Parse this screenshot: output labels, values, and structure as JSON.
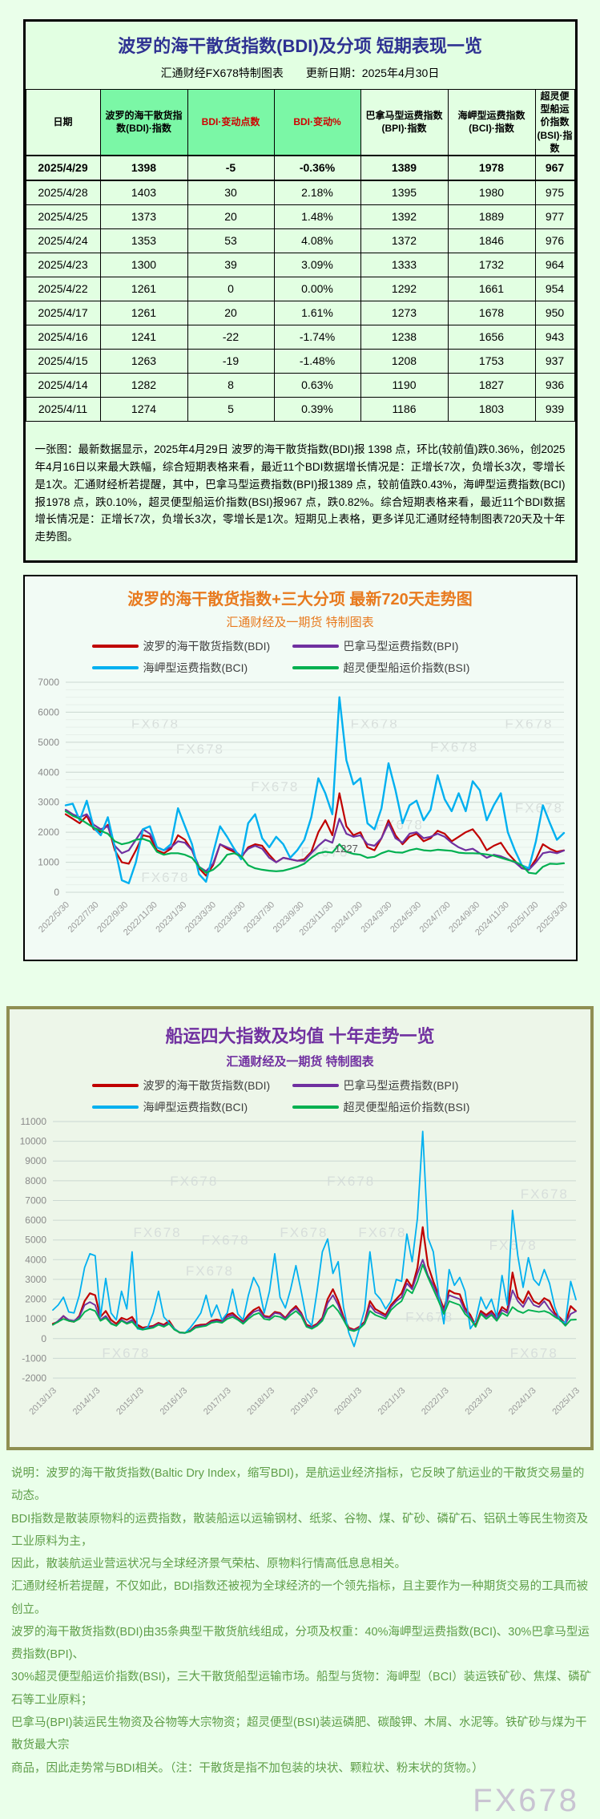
{
  "page": {
    "watermark": "FX678"
  },
  "summary_table": {
    "title": "波罗的海干散货指数(BDI)及分项 短期表现一览",
    "subtitle_left": "汇通财经FX678特制图表",
    "subtitle_right": "更新日期：2025年4月30日",
    "columns": [
      "日期",
      "波罗的海干散货指数(BDI)·指数",
      "BDI·变动点数",
      "BDI·变动%",
      "巴拿马型运费指数(BPI)·指数",
      "海岬型运费指数(BCI)·指数",
      "超灵便型船运价指数(BSI)·指数"
    ],
    "rows": [
      [
        "2025/4/29",
        "1398",
        "-5",
        "-0.36%",
        "1389",
        "1978",
        "967"
      ],
      [
        "2025/4/28",
        "1403",
        "30",
        "2.18%",
        "1395",
        "1980",
        "975"
      ],
      [
        "2025/4/25",
        "1373",
        "20",
        "1.48%",
        "1392",
        "1889",
        "977"
      ],
      [
        "2025/4/24",
        "1353",
        "53",
        "4.08%",
        "1372",
        "1846",
        "976"
      ],
      [
        "2025/4/23",
        "1300",
        "39",
        "3.09%",
        "1333",
        "1732",
        "964"
      ],
      [
        "2025/4/22",
        "1261",
        "0",
        "0.00%",
        "1292",
        "1661",
        "954"
      ],
      [
        "2025/4/17",
        "1261",
        "20",
        "1.61%",
        "1273",
        "1678",
        "950"
      ],
      [
        "2025/4/16",
        "1241",
        "-22",
        "-1.74%",
        "1238",
        "1656",
        "943"
      ],
      [
        "2025/4/15",
        "1263",
        "-19",
        "-1.48%",
        "1208",
        "1753",
        "937"
      ],
      [
        "2025/4/14",
        "1282",
        "8",
        "0.63%",
        "1190",
        "1827",
        "936"
      ],
      [
        "2025/4/11",
        "1274",
        "5",
        "0.39%",
        "1186",
        "1803",
        "939"
      ]
    ],
    "note": "一张图：最新数据显示，2025年4月29日 波罗的海干散货指数(BDI)报 1398 点，环比(较前值)跌0.36%，创2025年4月16日以来最大跌幅，综合短期表格来看，最近11个BDI数据增长情况是：正增长7次，负增长3次，零增长是1次。汇通财经析若提醒，其中，巴拿马型运费指数(BPI)报1389 点，较前值跌0.43%，海岬型运费指数(BCI)报1978 点，跌0.10%，超灵便型船运价指数(BSI)报967 点，跌0.82%。综合短期表格来看，最近11个BDI数据增长情况是：正增长7次，负增长3次，零增长是1次。短期见上表格，更多详见汇通财经特制图表720天及十年走势图。"
  },
  "chart_data": [
    {
      "type": "line",
      "title": "波罗的海干散货指数+三大分项  最新720天走势图",
      "subtitle": "汇通财经及一期货 特制图表",
      "legend_position": "top",
      "grid": true,
      "watermark": "FX678",
      "watermarks": [
        [
          0.18,
          0.22
        ],
        [
          0.62,
          0.22
        ],
        [
          0.93,
          0.22
        ],
        [
          0.27,
          0.34
        ],
        [
          0.78,
          0.33
        ],
        [
          0.42,
          0.52
        ],
        [
          0.67,
          0.7
        ],
        [
          0.95,
          0.62
        ],
        [
          0.52,
          0.83
        ],
        [
          0.2,
          0.95
        ]
      ],
      "ylim": [
        0,
        7000
      ],
      "ytick_step": 1000,
      "minor_step": 250,
      "x_labels": [
        "2022/5/30",
        "2022/7/30",
        "2022/9/30",
        "2022/11/30",
        "2023/1/30",
        "2023/3/30",
        "2023/5/30",
        "2023/7/30",
        "2023/9/30",
        "2023/11/30",
        "2024/1/30",
        "2024/3/30",
        "2024/5/30",
        "2024/7/30",
        "2024/9/30",
        "2024/11/30",
        "2025/1/30",
        "2025/3/30"
      ],
      "annotations": [
        {
          "text": "1227",
          "x_frac": 0.54,
          "value": 1330
        }
      ],
      "series": [
        {
          "name": "波罗的海干散货指数(BDI)",
          "color": "#c00000",
          "width": 2.2,
          "values": [
            2600,
            2450,
            2300,
            2550,
            2100,
            2000,
            2250,
            1400,
            1000,
            950,
            1400,
            1900,
            1850,
            1400,
            1300,
            1450,
            1900,
            1750,
            1400,
            800,
            550,
            900,
            1600,
            1450,
            1350,
            1150,
            1500,
            1600,
            1550,
            1250,
            1000,
            1150,
            1100,
            1050,
            1100,
            1350,
            2000,
            2400,
            1900,
            3300,
            2200,
            1900,
            2000,
            1500,
            1400,
            1800,
            2400,
            1900,
            1600,
            1850,
            1950,
            1700,
            1800,
            2050,
            1950,
            1700,
            1850,
            2000,
            2100,
            1800,
            1400,
            1550,
            1650,
            1300,
            1050,
            800,
            750,
            1100,
            1600,
            1450,
            1350,
            1398
          ]
        },
        {
          "name": "巴拿马型运费指数(BPI)",
          "color": "#7030a0",
          "width": 2.2,
          "values": [
            2750,
            2600,
            2500,
            2600,
            2250,
            2100,
            2200,
            1550,
            1300,
            1400,
            1750,
            2100,
            1950,
            1500,
            1400,
            1500,
            1700,
            1650,
            1400,
            850,
            700,
            950,
            1600,
            1500,
            1400,
            1200,
            1450,
            1550,
            1450,
            1150,
            1000,
            1150,
            1100,
            1050,
            1050,
            1300,
            1550,
            1750,
            1650,
            2450,
            1950,
            1850,
            1900,
            1600,
            1550,
            1800,
            2300,
            1800,
            1650,
            1950,
            2000,
            1800,
            1850,
            1950,
            1850,
            1650,
            1500,
            1400,
            1450,
            1300,
            1150,
            1250,
            1200,
            1100,
            1000,
            800,
            750,
            1000,
            1300,
            1350,
            1300,
            1389
          ]
        },
        {
          "name": "海岬型运费指数(BCI)",
          "color": "#00b0f0",
          "width": 2.4,
          "values": [
            2900,
            2950,
            2400,
            3050,
            2150,
            1900,
            2500,
            1500,
            400,
            300,
            1000,
            2100,
            2200,
            1500,
            1400,
            1600,
            2800,
            2200,
            1600,
            600,
            350,
            1300,
            2200,
            1850,
            1450,
            1100,
            2300,
            2600,
            1800,
            1500,
            1850,
            1600,
            1150,
            1400,
            1750,
            2500,
            3800,
            3300,
            2600,
            6500,
            4400,
            3600,
            3800,
            2300,
            2100,
            2800,
            4300,
            3400,
            2300,
            2900,
            3050,
            2400,
            2750,
            3900,
            3100,
            2700,
            3300,
            2700,
            3700,
            3400,
            2400,
            2900,
            3300,
            2000,
            1400,
            900,
            800,
            1700,
            2900,
            2300,
            1750,
            1978
          ]
        },
        {
          "name": "超灵便型船运价指数(BSI)",
          "color": "#00b050",
          "width": 2.2,
          "values": [
            2700,
            2550,
            2450,
            2300,
            2150,
            2050,
            1950,
            1700,
            1600,
            1650,
            1750,
            1780,
            1700,
            1350,
            1250,
            1300,
            1300,
            1250,
            1150,
            850,
            650,
            750,
            950,
            1250,
            1300,
            1200,
            900,
            800,
            750,
            720,
            700,
            720,
            780,
            850,
            950,
            1150,
            1300,
            1350,
            1320,
            1600,
            1350,
            1280,
            1250,
            1150,
            1180,
            1300,
            1380,
            1330,
            1320,
            1400,
            1450,
            1400,
            1380,
            1420,
            1400,
            1380,
            1320,
            1300,
            1300,
            1290,
            1260,
            1220,
            1150,
            1080,
            1020,
            900,
            650,
            620,
            850,
            950,
            940,
            967
          ]
        }
      ]
    },
    {
      "type": "line",
      "title": "船运四大指数及均值 十年走势一览",
      "subtitle": "汇通财经及一期货 特制图表",
      "legend_position": "top",
      "grid": true,
      "watermark": "FX678",
      "watermarks": [
        [
          0.27,
          0.25
        ],
        [
          0.57,
          0.25
        ],
        [
          0.94,
          0.3
        ],
        [
          0.2,
          0.45
        ],
        [
          0.33,
          0.48
        ],
        [
          0.48,
          0.45
        ],
        [
          0.63,
          0.45
        ],
        [
          0.88,
          0.5
        ],
        [
          0.3,
          0.6
        ],
        [
          0.72,
          0.78
        ],
        [
          0.14,
          0.92
        ],
        [
          0.92,
          0.92
        ]
      ],
      "ylim": [
        -2000,
        11000
      ],
      "ytick_step": 1000,
      "minor_step": null,
      "x_labels": [
        "2013/1/3",
        "2014/1/3",
        "2015/1/3",
        "2016/1/3",
        "2017/1/3",
        "2018/1/3",
        "2019/1/3",
        "2020/1/3",
        "2021/1/3",
        "2022/1/3",
        "2023/1/3",
        "2024/1/3",
        "2025/1/3"
      ],
      "annotations": [],
      "series": [
        {
          "name": "波罗的海干散货指数(BDI)",
          "color": "#c00000",
          "width": 2.2,
          "values": [
            750,
            850,
            1150,
            900,
            850,
            1150,
            1900,
            2300,
            2200,
            1100,
            1400,
            950,
            750,
            1050,
            950,
            1100,
            700,
            550,
            600,
            650,
            800,
            700,
            900,
            500,
            300,
            290,
            400,
            650,
            700,
            720,
            900,
            960,
            900,
            1200,
            1300,
            1050,
            850,
            1200,
            1450,
            1600,
            1150,
            1100,
            1350,
            1300,
            1050,
            1400,
            1650,
            1300,
            700,
            600,
            750,
            1050,
            2000,
            2500,
            1900,
            1100,
            550,
            450,
            600,
            850,
            1900,
            1500,
            1350,
            1200,
            1700,
            2000,
            2300,
            3000,
            2600,
            3600,
            5650,
            3700,
            2900,
            2200,
            1500,
            2450,
            2300,
            2250,
            1550,
            1200,
            650,
            1400,
            1200,
            1400,
            1050,
            1600,
            1400,
            3350,
            2100,
            1800,
            2400,
            1900,
            1750,
            2050,
            1900,
            1300,
            1050,
            760,
            1650,
            1398
          ]
        },
        {
          "name": "巴拿马型运费指数(BPI)",
          "color": "#7030a0",
          "width": 1.9,
          "values": [
            700,
            900,
            1150,
            950,
            900,
            1100,
            1700,
            1850,
            1700,
            950,
            1150,
            800,
            650,
            950,
            800,
            950,
            600,
            480,
            550,
            600,
            750,
            650,
            800,
            460,
            320,
            300,
            380,
            600,
            650,
            680,
            850,
            900,
            850,
            1100,
            1200,
            1000,
            800,
            1100,
            1350,
            1450,
            1100,
            1050,
            1300,
            1250,
            1000,
            1350,
            1550,
            1250,
            650,
            550,
            700,
            1000,
            1800,
            2200,
            1700,
            1000,
            500,
            420,
            550,
            800,
            1700,
            1350,
            1250,
            1100,
            1600,
            1900,
            2100,
            2800,
            2500,
            3300,
            4000,
            3200,
            2700,
            2100,
            1400,
            2200,
            2100,
            2000,
            1400,
            1100,
            600,
            1300,
            1100,
            1300,
            1000,
            1450,
            1300,
            2450,
            1900,
            1600,
            2100,
            1700,
            1600,
            1900,
            1500,
            1200,
            1000,
            750,
            1250,
            1389
          ]
        },
        {
          "name": "海岬型运费指数(BCI)",
          "color": "#00b0f0",
          "width": 1.8,
          "values": [
            1450,
            1700,
            2100,
            1350,
            1300,
            2200,
            3600,
            4300,
            4200,
            1100,
            3050,
            1300,
            950,
            2400,
            1500,
            4400,
            500,
            450,
            600,
            1300,
            2400,
            1100,
            800,
            500,
            300,
            280,
            550,
            900,
            1300,
            2200,
            1100,
            1700,
            950,
            1300,
            2500,
            1250,
            950,
            2200,
            3100,
            2600,
            1300,
            2400,
            4300,
            2100,
            1550,
            2500,
            3700,
            2400,
            1000,
            650,
            2400,
            4400,
            5050,
            3300,
            3900,
            1600,
            300,
            -400,
            500,
            1450,
            4400,
            2300,
            2000,
            1500,
            1900,
            3000,
            2900,
            5300,
            3900,
            6100,
            10500,
            5100,
            4400,
            2300,
            750,
            3500,
            2700,
            3100,
            2400,
            500,
            900,
            2100,
            1500,
            2000,
            1100,
            3200,
            1700,
            6500,
            4200,
            2600,
            4100,
            3000,
            2700,
            3500,
            2800,
            1600,
            900,
            800,
            2900,
            1978
          ]
        },
        {
          "name": "超灵便型船运价指数(BSI)",
          "color": "#00b050",
          "width": 1.9,
          "values": [
            700,
            850,
            1000,
            900,
            850,
            1000,
            1350,
            1500,
            1400,
            900,
            1050,
            750,
            650,
            900,
            750,
            850,
            550,
            450,
            500,
            550,
            700,
            600,
            750,
            450,
            310,
            290,
            360,
            550,
            600,
            650,
            800,
            850,
            800,
            1000,
            1100,
            950,
            750,
            1000,
            1200,
            1300,
            1000,
            950,
            1150,
            1100,
            950,
            1200,
            1400,
            1150,
            600,
            500,
            650,
            900,
            1500,
            1700,
            1400,
            950,
            450,
            380,
            500,
            750,
            1400,
            1200,
            1100,
            1000,
            1450,
            1700,
            1900,
            2500,
            2300,
            2900,
            3750,
            3100,
            2500,
            1900,
            1250,
            1900,
            1800,
            1700,
            1250,
            1000,
            600,
            1250,
            1000,
            1200,
            900,
            1300,
            1150,
            1600,
            1400,
            1300,
            1450,
            1400,
            1350,
            1400,
            1300,
            1100,
            950,
            650,
            950,
            967
          ]
        }
      ]
    }
  ],
  "description": {
    "lines": [
      "说明：波罗的海干散货指数(Baltic Dry Index，缩写BDI)，是航运业经济指标，它反映了航运业的干散货交易量的动态。",
      "BDI指数是散装原物料的运费指数，散装船运以运输钢材、纸浆、谷物、煤、矿砂、磷矿石、铝矾土等民生物资及工业原料为主，",
      "因此，散装航运业营运状况与全球经济景气荣枯、原物料行情高低息息相关。",
      "汇通财经析若提醒，不仅如此，BDI指数还被视为全球经济的一个领先指标，且主要作为一种期货交易的工具而被创立。",
      "波罗的海干散货指数(BDI)由35条典型干散货航线组成，分项及权重：40%海岬型运费指数(BCI)、30%巴拿马型运费指数(BPI)、",
      "30%超灵便型船运价指数(BSI)，三大干散货船型运输市场。船型与货物：海岬型（BCI）装运铁矿砂、焦煤、磷矿石等工业原料；",
      "巴拿马(BPI)装运民生物资及谷物等大宗物资；超灵便型(BSI)装运磷肥、碳酸钾、木屑、水泥等。铁矿砂与煤为干散货最大宗",
      "商品，因此走势常与BDI相关。（注：干散货是指不加包装的块状、颗粒状、粉末状的货物。）"
    ]
  }
}
